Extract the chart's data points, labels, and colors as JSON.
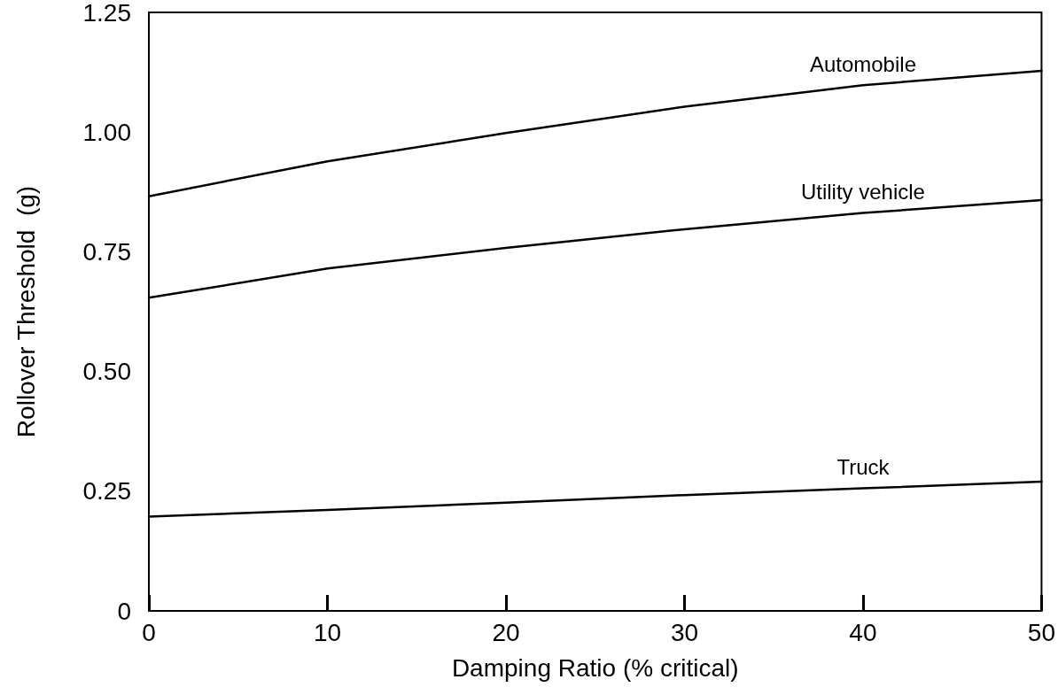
{
  "chart_data": {
    "type": "line",
    "xlabel": "Damping Ratio (% critical)",
    "ylabel": "Rollover Threshold  (g)",
    "x": [
      0,
      10,
      20,
      30,
      40,
      50
    ],
    "series": [
      {
        "name": "Automobile",
        "color": "#000000",
        "values": [
          0.866,
          0.939,
          0.998,
          1.053,
          1.098,
          1.128
        ]
      },
      {
        "name": "Utility vehicle",
        "color": "#000000",
        "values": [
          0.654,
          0.715,
          0.758,
          0.797,
          0.831,
          0.858
        ]
      },
      {
        "name": "Truck",
        "color": "#000000",
        "values": [
          0.197,
          0.211,
          0.226,
          0.242,
          0.256,
          0.27
        ]
      }
    ],
    "xlim": [
      0,
      50
    ],
    "xticks": [
      0,
      10,
      20,
      30,
      40,
      50
    ],
    "ylim": [
      0,
      1.25
    ],
    "yticks": [
      0,
      0.25,
      {
        "value": 0.5,
        "label": "0.50"
      },
      0.75,
      {
        "value": 1,
        "label": "1.00"
      },
      1.25
    ],
    "grid": false,
    "legend": false,
    "marker": "none",
    "line_style": "solid"
  }
}
